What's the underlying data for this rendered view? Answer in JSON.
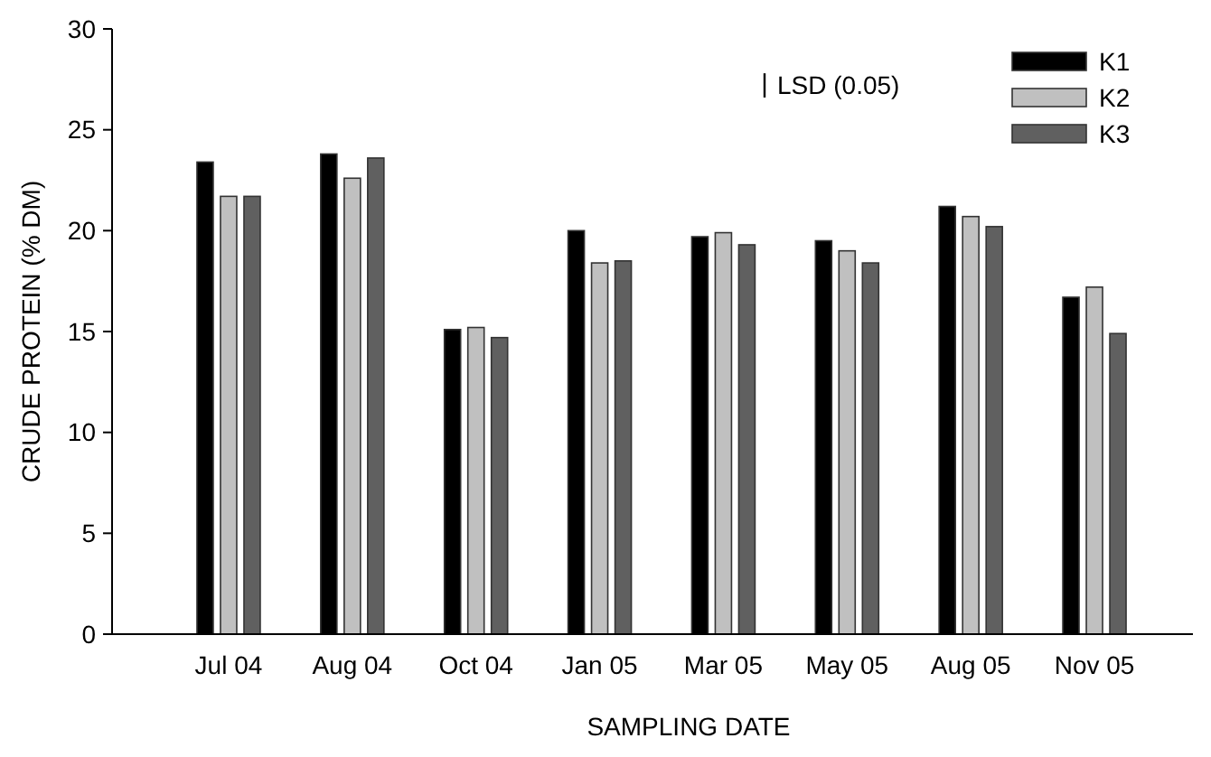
{
  "chart_data": {
    "type": "bar",
    "xlabel": "SAMPLING DATE",
    "ylabel": "CRUDE PROTEIN (% DM)",
    "categories": [
      "Jul 04",
      "Aug 04",
      "Oct 04",
      "Jan 05",
      "Mar 05",
      "May 05",
      "Aug 05",
      "Nov 05"
    ],
    "series": [
      {
        "name": "K1",
        "color": "#000000",
        "values": [
          23.4,
          23.8,
          15.1,
          20.0,
          19.7,
          19.5,
          21.2,
          16.7
        ]
      },
      {
        "name": "K2",
        "color": "#c0c0c0",
        "values": [
          21.7,
          22.6,
          15.2,
          18.4,
          19.9,
          19.0,
          20.7,
          17.2
        ]
      },
      {
        "name": "K3",
        "color": "#606060",
        "values": [
          21.7,
          23.6,
          14.7,
          18.5,
          19.3,
          18.4,
          20.2,
          14.9
        ]
      }
    ],
    "ylim": [
      0,
      30
    ],
    "yticks": [
      0,
      5,
      10,
      15,
      20,
      25,
      30
    ],
    "grid": false,
    "legend": "top right",
    "annotations": [
      "LSD (0.05)"
    ]
  }
}
